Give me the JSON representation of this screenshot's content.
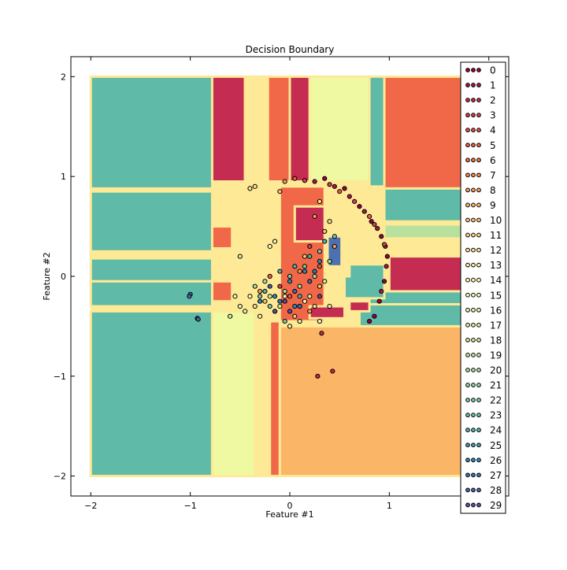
{
  "chart_data": {
    "type": "scatter",
    "title": "Decision Boundary",
    "xlabel": "Feature #1",
    "ylabel": "Feature #2",
    "xlim": [
      -2.2,
      2.2
    ],
    "ylim": [
      -2.2,
      2.2
    ],
    "xticks": [
      -2,
      -1,
      0,
      1,
      2
    ],
    "yticks": [
      -2,
      -1,
      0,
      1,
      2
    ],
    "xtick_labels": [
      "−2",
      "−1",
      "0",
      "1",
      "2"
    ],
    "ytick_labels": [
      "−2",
      "−1",
      "0",
      "1",
      "2"
    ],
    "grid": false,
    "legend_position": "right",
    "colormap": "Spectral",
    "legend": [
      "0",
      "1",
      "2",
      "3",
      "4",
      "5",
      "6",
      "7",
      "8",
      "9",
      "10",
      "11",
      "12",
      "13",
      "14",
      "15",
      "16",
      "17",
      "18",
      "19",
      "20",
      "21",
      "22",
      "23",
      "24",
      "25",
      "26",
      "27",
      "28",
      "29"
    ],
    "region_colors": {
      "teal": "#5fbaa7",
      "crimson": "#c42c51",
      "tomato": "#f06848",
      "orange": "#fbb566",
      "yellow": "#fee996",
      "pale_yellow": "#eff9a2",
      "light_green": "#b8e19d",
      "blue": "#4d70b0"
    },
    "regions": [
      {
        "x": [
          -2.0,
          -0.78
        ],
        "y": [
          0.88,
          2.0
        ],
        "class": "teal"
      },
      {
        "x": [
          -0.78,
          -0.45
        ],
        "y": [
          0.95,
          2.0
        ],
        "class": "crimson"
      },
      {
        "x": [
          -0.45,
          -0.22
        ],
        "y": [
          0.95,
          2.0
        ],
        "class": "yellow"
      },
      {
        "x": [
          -0.22,
          0.0
        ],
        "y": [
          0.95,
          2.0
        ],
        "class": "tomato"
      },
      {
        "x": [
          0.0,
          0.2
        ],
        "y": [
          0.95,
          2.0
        ],
        "class": "crimson"
      },
      {
        "x": [
          0.2,
          0.8
        ],
        "y": [
          0.95,
          2.0
        ],
        "class": "pale_yellow"
      },
      {
        "x": [
          0.8,
          0.95
        ],
        "y": [
          0.9,
          2.0
        ],
        "class": "teal"
      },
      {
        "x": [
          0.95,
          2.0
        ],
        "y": [
          0.88,
          2.0
        ],
        "class": "tomato"
      },
      {
        "x": [
          -2.0,
          -0.78
        ],
        "y": [
          -0.05,
          0.85
        ],
        "class": "teal"
      },
      {
        "x": [
          -2.0,
          -0.78
        ],
        "y": [
          0.18,
          0.25
        ],
        "class": "yellow"
      },
      {
        "x": [
          -0.78,
          -0.58
        ],
        "y": [
          0.28,
          0.5
        ],
        "class": "tomato"
      },
      {
        "x": [
          -0.78,
          -0.58
        ],
        "y": [
          -0.25,
          -0.05
        ],
        "class": "tomato"
      },
      {
        "x": [
          -2.0,
          -0.78
        ],
        "y": [
          -0.3,
          -0.05
        ],
        "class": "teal"
      },
      {
        "x": [
          -2.0,
          -0.78
        ],
        "y": [
          -2.0,
          -0.35
        ],
        "class": "teal"
      },
      {
        "x": [
          -0.78,
          -0.35
        ],
        "y": [
          -2.0,
          -0.35
        ],
        "class": "pale_yellow"
      },
      {
        "x": [
          -0.35,
          -0.2
        ],
        "y": [
          -2.0,
          -0.45
        ],
        "class": "yellow"
      },
      {
        "x": [
          -0.2,
          -0.1
        ],
        "y": [
          -2.0,
          -0.45
        ],
        "class": "tomato"
      },
      {
        "x": [
          -0.1,
          2.0
        ],
        "y": [
          -2.0,
          -0.5
        ],
        "class": "orange"
      },
      {
        "x": [
          0.95,
          2.0
        ],
        "y": [
          0.55,
          0.88
        ],
        "class": "teal"
      },
      {
        "x": [
          0.95,
          2.0
        ],
        "y": [
          0.38,
          0.52
        ],
        "class": "light_green"
      },
      {
        "x": [
          1.0,
          2.0
        ],
        "y": [
          -0.15,
          0.2
        ],
        "class": "crimson"
      },
      {
        "x": [
          0.8,
          2.0
        ],
        "y": [
          -0.28,
          -0.15
        ],
        "class": "teal"
      },
      {
        "x": [
          0.7,
          2.0
        ],
        "y": [
          -0.5,
          -0.28
        ],
        "class": "teal"
      },
      {
        "x": [
          0.55,
          0.95
        ],
        "y": [
          -0.22,
          0.12
        ],
        "class": "teal"
      },
      {
        "x": [
          -0.45,
          0.6
        ],
        "y": [
          0.0,
          0.9
        ],
        "class": "yellow"
      },
      {
        "x": [
          -0.1,
          0.35
        ],
        "y": [
          -0.45,
          0.9
        ],
        "class": "tomato"
      },
      {
        "x": [
          0.05,
          0.35
        ],
        "y": [
          0.35,
          0.7
        ],
        "class": "crimson"
      },
      {
        "x": [
          0.38,
          0.52
        ],
        "y": [
          0.1,
          0.4
        ],
        "class": "blue"
      },
      {
        "x": [
          0.6,
          0.8
        ],
        "y": [
          -0.35,
          -0.25
        ],
        "class": "crimson"
      },
      {
        "x": [
          0.2,
          0.55
        ],
        "y": [
          -0.42,
          -0.3
        ],
        "class": "crimson"
      }
    ],
    "series": [
      {
        "class": "0",
        "points": [
          [
            0.35,
            0.98
          ],
          [
            0.55,
            0.88
          ],
          [
            0.7,
            0.7
          ],
          [
            0.82,
            0.55
          ],
          [
            0.92,
            0.4
          ],
          [
            0.98,
            0.2
          ],
          [
            0.95,
            -0.05
          ],
          [
            0.9,
            -0.25
          ],
          [
            0.85,
            -0.4
          ],
          [
            0.8,
            -0.45
          ]
        ]
      },
      {
        "class": "1",
        "points": [
          [
            0.25,
            0.95
          ],
          [
            0.45,
            0.9
          ],
          [
            0.6,
            0.8
          ],
          [
            0.75,
            0.65
          ],
          [
            0.88,
            0.48
          ],
          [
            0.96,
            0.3
          ],
          [
            0.97,
            0.1
          ],
          [
            0.92,
            -0.15
          ]
        ]
      },
      {
        "class": "3",
        "points": [
          [
            0.15,
            0.96
          ],
          [
            0.4,
            0.92
          ],
          [
            0.65,
            0.75
          ],
          [
            0.85,
            0.52
          ],
          [
            0.95,
            0.32
          ],
          [
            -0.1,
            -0.1
          ],
          [
            0.2,
            0.3
          ],
          [
            0.1,
            -0.3
          ]
        ]
      },
      {
        "class": "5",
        "points": [
          [
            0.05,
            0.98
          ],
          [
            0.5,
            0.85
          ],
          [
            0.8,
            0.6
          ],
          [
            0.3,
            0.1
          ],
          [
            -0.2,
            0.0
          ],
          [
            0.0,
            -0.2
          ]
        ]
      },
      {
        "class": "8",
        "points": [
          [
            -0.05,
            0.95
          ],
          [
            0.25,
            0.6
          ],
          [
            0.45,
            0.3
          ],
          [
            0.1,
            0.05
          ],
          [
            -0.3,
            -0.15
          ],
          [
            0.2,
            -0.35
          ]
        ]
      },
      {
        "class": "10",
        "points": [
          [
            -0.1,
            0.85
          ],
          [
            0.35,
            0.45
          ],
          [
            0.15,
            0.2
          ],
          [
            -0.25,
            -0.25
          ],
          [
            0.05,
            -0.4
          ],
          [
            0.3,
            -0.1
          ]
        ]
      },
      {
        "class": "12",
        "points": [
          [
            -0.4,
            0.88
          ],
          [
            -0.35,
            0.9
          ],
          [
            0.3,
            0.75
          ],
          [
            0.4,
            0.55
          ],
          [
            -0.35,
            -0.3
          ],
          [
            -0.15,
            -0.35
          ],
          [
            0.25,
            -0.3
          ]
        ]
      },
      {
        "class": "14",
        "points": [
          [
            -0.2,
            0.3
          ],
          [
            -0.15,
            0.35
          ],
          [
            -0.4,
            -0.2
          ],
          [
            -0.05,
            -0.2
          ],
          [
            0.15,
            -0.25
          ],
          [
            0.3,
            -0.45
          ]
        ]
      },
      {
        "class": "16",
        "points": [
          [
            -0.55,
            -0.2
          ],
          [
            -0.5,
            -0.3
          ],
          [
            -0.45,
            -0.35
          ],
          [
            -0.3,
            -0.4
          ],
          [
            0.0,
            -0.5
          ],
          [
            0.1,
            -0.45
          ],
          [
            0.4,
            -0.3
          ]
        ]
      },
      {
        "class": "18",
        "points": [
          [
            -0.6,
            -0.4
          ],
          [
            -0.5,
            0.2
          ],
          [
            -0.2,
            -0.2
          ],
          [
            -0.1,
            -0.3
          ],
          [
            0.2,
            -0.2
          ],
          [
            0.35,
            -0.05
          ]
        ]
      },
      {
        "class": "20",
        "points": [
          [
            -0.35,
            -0.1
          ],
          [
            -0.25,
            -0.05
          ],
          [
            -0.05,
            -0.15
          ],
          [
            0.1,
            -0.1
          ],
          [
            0.25,
            0.0
          ],
          [
            0.4,
            0.15
          ]
        ]
      },
      {
        "class": "22",
        "points": [
          [
            -0.3,
            -0.2
          ],
          [
            -0.2,
            -0.3
          ],
          [
            0.0,
            0.0
          ],
          [
            0.15,
            0.1
          ],
          [
            0.3,
            0.25
          ],
          [
            0.45,
            0.4
          ],
          [
            -0.05,
            -0.45
          ]
        ]
      },
      {
        "class": "24",
        "points": [
          [
            -0.25,
            -0.15
          ],
          [
            -0.1,
            0.05
          ],
          [
            0.05,
            0.1
          ],
          [
            0.2,
            0.2
          ],
          [
            0.35,
            0.35
          ],
          [
            0.1,
            -0.2
          ]
        ]
      },
      {
        "class": "26",
        "points": [
          [
            -0.15,
            -0.2
          ],
          [
            0.0,
            -0.05
          ],
          [
            0.15,
            0.05
          ],
          [
            0.3,
            0.15
          ],
          [
            -0.3,
            -0.25
          ],
          [
            0.05,
            -0.3
          ]
        ]
      },
      {
        "class": "27",
        "points": [
          [
            -1.0,
            -0.18
          ],
          [
            -0.93,
            -0.42
          ],
          [
            -0.1,
            -0.25
          ],
          [
            0.1,
            -0.3
          ],
          [
            0.25,
            0.05
          ]
        ]
      },
      {
        "class": "28",
        "points": [
          [
            -1.01,
            -0.2
          ],
          [
            -0.92,
            -0.43
          ],
          [
            -0.2,
            -0.1
          ],
          [
            0.05,
            -0.15
          ],
          [
            0.2,
            -0.05
          ]
        ]
      },
      {
        "class": "29",
        "points": [
          [
            -0.05,
            -0.25
          ],
          [
            0.0,
            -0.35
          ],
          [
            -0.15,
            -0.35
          ],
          [
            0.3,
            -0.2
          ]
        ]
      },
      {
        "class": "2",
        "points": [
          [
            0.28,
            -1.0
          ],
          [
            0.43,
            -0.95
          ],
          [
            0.32,
            -0.57
          ]
        ]
      }
    ]
  }
}
